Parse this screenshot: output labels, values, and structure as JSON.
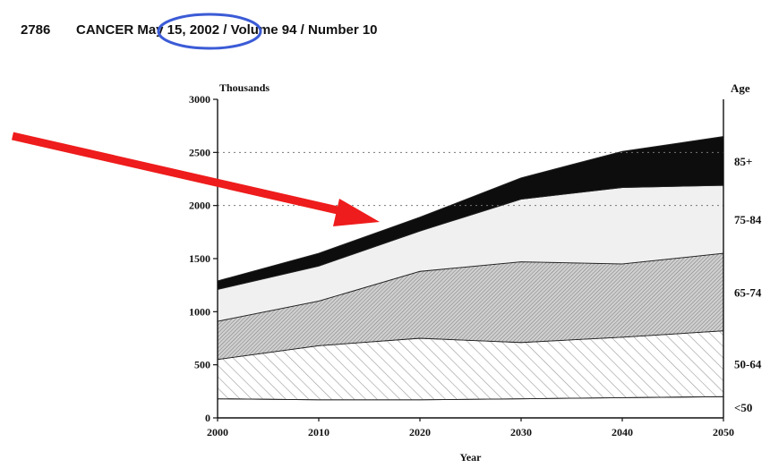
{
  "header": {
    "page_number": "2786",
    "journal_line": "CANCER  May 15, 2002 / Volume 94 / Number 10",
    "highlighted_text": "May 15, 2002"
  },
  "annotations": {
    "arrow_color": "#ee1c1c",
    "circle_color": "#3b5bd6"
  },
  "chart_data": {
    "type": "area",
    "stacked": true,
    "x": [
      2000,
      2010,
      2020,
      2030,
      2040,
      2050
    ],
    "ylabel": "Thousands",
    "xlabel": "Year",
    "right_axis_title": "Age",
    "ylim": [
      0,
      3000
    ],
    "xlim": [
      2000,
      2050
    ],
    "y_ticks": [
      "0",
      "500",
      "1000",
      "1500",
      "2000",
      "2500",
      "3000"
    ],
    "x_ticks": [
      "2000",
      "2010",
      "2020",
      "2030",
      "2040",
      "2050"
    ],
    "gridlines": [
      2500,
      2000
    ],
    "series": [
      {
        "name": "<50",
        "values": [
          180,
          170,
          170,
          180,
          190,
          200
        ]
      },
      {
        "name": "50-64",
        "values": [
          370,
          510,
          580,
          530,
          570,
          620
        ]
      },
      {
        "name": "65-74",
        "values": [
          360,
          420,
          630,
          760,
          690,
          730
        ]
      },
      {
        "name": "75-84",
        "values": [
          300,
          330,
          380,
          590,
          720,
          640
        ]
      },
      {
        "name": "85+",
        "values": [
          80,
          120,
          130,
          200,
          340,
          460
        ]
      }
    ]
  }
}
